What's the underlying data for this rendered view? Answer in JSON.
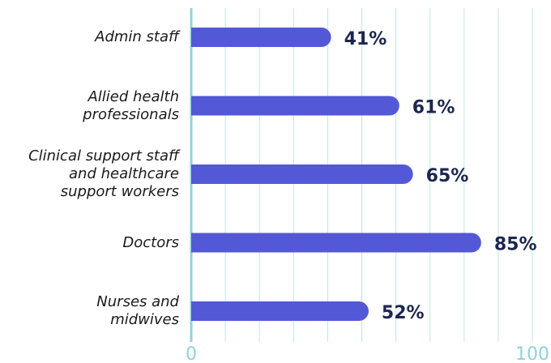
{
  "chart_data": {
    "type": "barh",
    "categories": [
      "Admin staff",
      "Allied health\nprofessionals",
      "Clinical support staff\nand healthcare\nsupport workers",
      "Doctors",
      "Nurses and\nmidwives"
    ],
    "values": [
      41,
      61,
      65,
      85,
      52
    ],
    "value_labels": [
      "41%",
      "61%",
      "65%",
      "85%",
      "52%"
    ],
    "color": "#5359d6",
    "xlim": [
      0,
      100
    ],
    "xticks": [
      0,
      100
    ],
    "gridlines": [
      10,
      20,
      30,
      40,
      50,
      60,
      70,
      80,
      90,
      100
    ],
    "grid": true
  }
}
